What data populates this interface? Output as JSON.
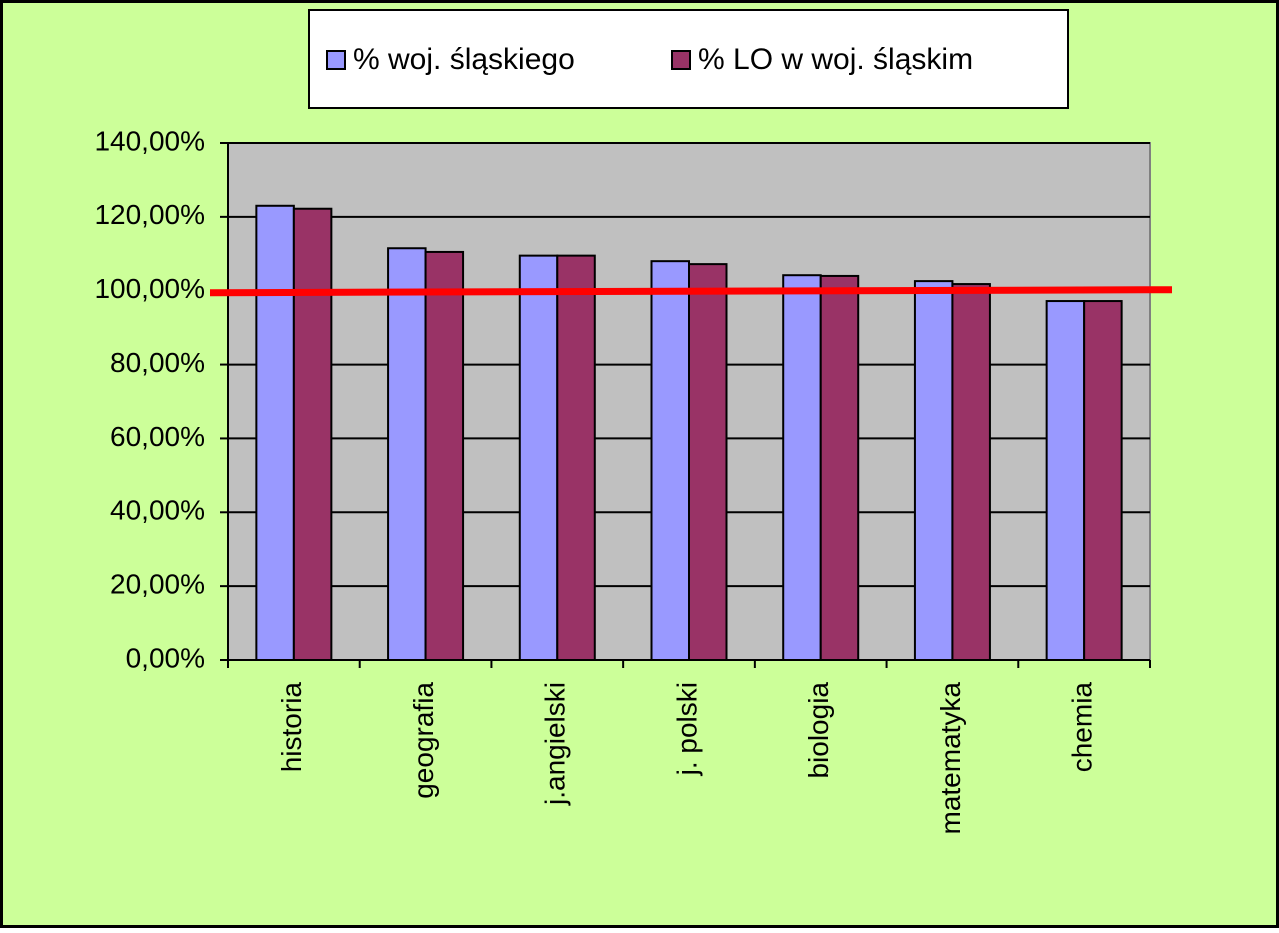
{
  "chart_data": {
    "type": "bar",
    "categories": [
      "historia",
      "geografia",
      "j.angielski",
      "j. polski",
      "biologia",
      "matematyka",
      "chemia"
    ],
    "series": [
      {
        "name": "% woj. śląskiego",
        "color": "#9999ff",
        "values": [
          123,
          111.5,
          109.5,
          108,
          104.2,
          102.6,
          97.2
        ]
      },
      {
        "name": "% LO w woj. śląskim",
        "color": "#993366",
        "values": [
          122.2,
          110.5,
          109.5,
          107.2,
          104,
          101.8,
          97.2
        ]
      }
    ],
    "ylim": [
      0,
      140
    ],
    "yticks": [
      {
        "value": 0,
        "label": "0,00%"
      },
      {
        "value": 20,
        "label": "20,00%"
      },
      {
        "value": 40,
        "label": "40,00%"
      },
      {
        "value": 60,
        "label": "60,00%"
      },
      {
        "value": 80,
        "label": "80,00%"
      },
      {
        "value": 100,
        "label": "100,00%"
      },
      {
        "value": 120,
        "label": "120,00%"
      },
      {
        "value": 140,
        "label": "140,00%"
      }
    ],
    "grid": true,
    "legend": "top",
    "reference_line": {
      "value": 100,
      "color": "#ff0000"
    }
  }
}
